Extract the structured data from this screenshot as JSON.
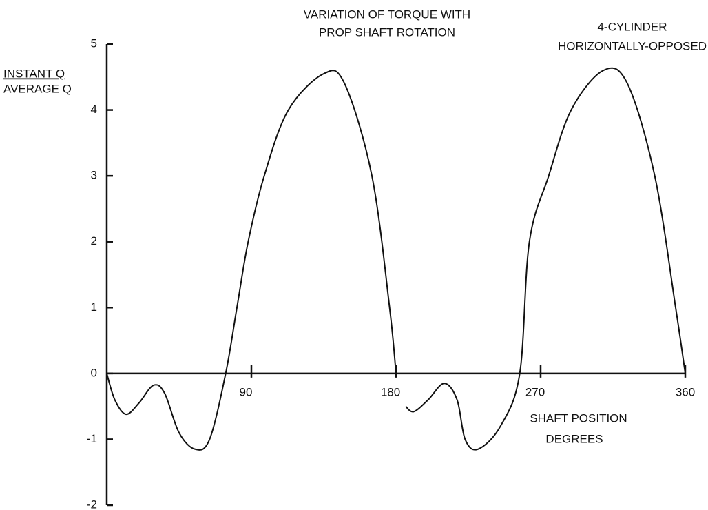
{
  "chart_data": {
    "type": "line",
    "title": [
      "VARIATION OF TORQUE WITH",
      "PROP SHAFT ROTATION"
    ],
    "annotation": [
      "4-CYLINDER",
      "HORIZONTALLY-OPPOSED"
    ],
    "y_label": [
      "INSTANT Q",
      "AVERAGE Q"
    ],
    "x_label": [
      "SHAFT POSITION",
      "DEGREES"
    ],
    "xlim": [
      0,
      360
    ],
    "xticks": [
      90,
      180,
      270,
      360
    ],
    "ylim": [
      -2,
      5
    ],
    "yticks": [
      -2,
      -1,
      0,
      1,
      2,
      3,
      4,
      5
    ],
    "series": [
      {
        "color": "#111111",
        "x": [
          0,
          5,
          12,
          20,
          29,
          36,
          45,
          55,
          64,
          74,
          81,
          88,
          98,
          113,
          135,
          148,
          165,
          176,
          180,
          183,
          186,
          191,
          200,
          210,
          218,
          223,
          231,
          245,
          257,
          263,
          275,
          289,
          309,
          324,
          341,
          354,
          360
        ],
        "values": [
          0,
          -0.4,
          -0.62,
          -0.45,
          -0.18,
          -0.3,
          -0.9,
          -1.15,
          -1.0,
          0,
          1,
          2,
          3,
          4,
          4.55,
          4.4,
          3,
          1,
          0,
          null,
          -0.5,
          -0.58,
          -0.4,
          -0.15,
          -0.4,
          -1.0,
          -1.15,
          -0.8,
          0,
          2,
          3,
          4,
          4.6,
          4.4,
          3,
          1,
          0
        ]
      }
    ]
  }
}
